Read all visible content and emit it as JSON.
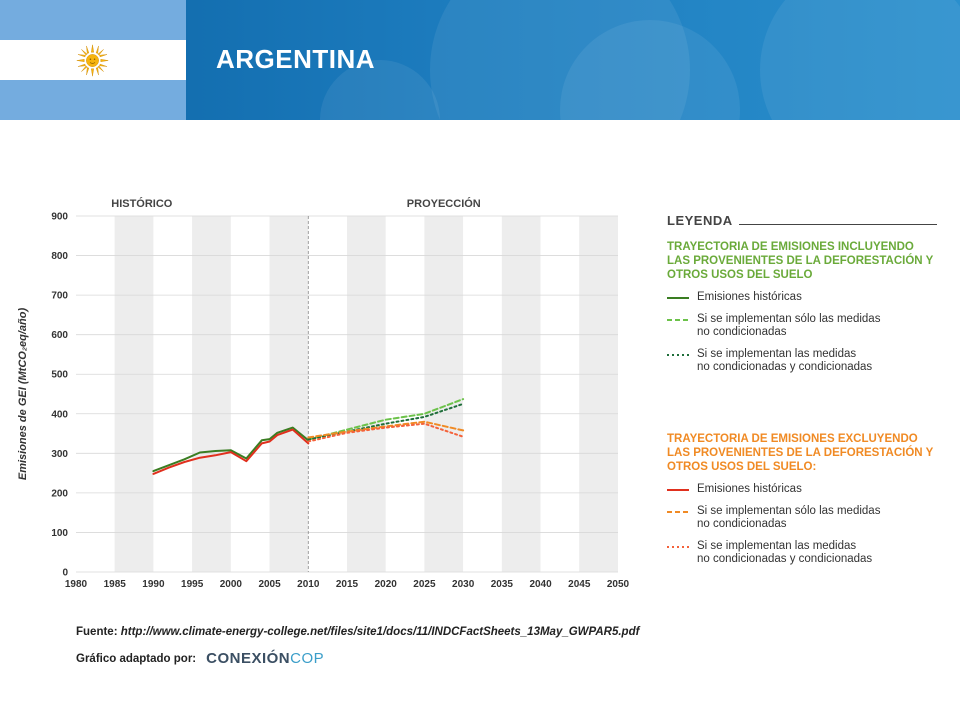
{
  "header": {
    "country": "ARGENTINA"
  },
  "chart_data": {
    "type": "line",
    "period_labels": {
      "historic": "HISTÓRICO",
      "projection": "PROYECCIÓN"
    },
    "ylabel": "Emisiones de GEI (MtCO₂eq/año)",
    "xlim": [
      1980,
      2050
    ],
    "ylim": [
      0,
      900
    ],
    "x_ticks": [
      1980,
      1985,
      1990,
      1995,
      2000,
      2005,
      2010,
      2015,
      2020,
      2025,
      2030,
      2035,
      2040,
      2045,
      2050
    ],
    "y_ticks": [
      0,
      100,
      200,
      300,
      400,
      500,
      600,
      700,
      800,
      900
    ],
    "divider_x": 2010,
    "grid": "alternating vertical bands",
    "colors": {
      "green_hist": "#3a7d22",
      "green_uncond": "#6cc24a",
      "green_cond": "#1f6e3a",
      "red_hist": "#e0301e",
      "orange_uncond": "#f08a24",
      "orange_cond": "#f4623a"
    },
    "series": [
      {
        "key": "green_hist",
        "style": "solid",
        "x": [
          1990,
          1992,
          1994,
          1996,
          1998,
          2000,
          2002,
          2004,
          2005,
          2006,
          2008,
          2010
        ],
        "y": [
          255,
          270,
          285,
          302,
          306,
          308,
          287,
          333,
          336,
          352,
          365,
          333
        ]
      },
      {
        "key": "green_uncond",
        "style": "dashed",
        "x": [
          2010,
          2015,
          2020,
          2025,
          2030
        ],
        "y": [
          335,
          360,
          385,
          400,
          437
        ]
      },
      {
        "key": "green_cond",
        "style": "dotted",
        "x": [
          2010,
          2015,
          2020,
          2025,
          2030
        ],
        "y": [
          335,
          355,
          375,
          392,
          425
        ]
      },
      {
        "key": "red_hist",
        "style": "solid",
        "x": [
          1990,
          1992,
          1994,
          1996,
          1998,
          2000,
          2002,
          2004,
          2005,
          2006,
          2008,
          2010
        ],
        "y": [
          248,
          264,
          278,
          289,
          295,
          303,
          280,
          325,
          330,
          346,
          360,
          325
        ]
      },
      {
        "key": "orange_uncond",
        "style": "dashed",
        "x": [
          2010,
          2015,
          2020,
          2025,
          2030
        ],
        "y": [
          340,
          355,
          368,
          380,
          358
        ]
      },
      {
        "key": "orange_cond",
        "style": "dotted",
        "x": [
          2010,
          2015,
          2020,
          2025,
          2030
        ],
        "y": [
          330,
          352,
          365,
          375,
          342
        ]
      }
    ]
  },
  "legend": {
    "title": "LEYENDA",
    "groups": [
      {
        "title": "TRAYECTORIA DE EMISIONES INCLUYENDO LAS PROVENIENTES DE LA DEFORESTACIÓN Y OTROS USOS DEL SUELO",
        "items": [
          {
            "label": "Emisiones históricas",
            "color": "#3a7d22",
            "style": "solid"
          },
          {
            "label": "Si se implementan sólo las medidas\nno condicionadas",
            "color": "#6cc24a",
            "style": "dashed"
          },
          {
            "label": "Si se implementan las medidas\nno condicionadas y condicionadas",
            "color": "#1f6e3a",
            "style": "dotted"
          }
        ]
      },
      {
        "title": "TRAYECTORIA DE EMISIONES EXCLUYENDO LAS PROVENIENTES DE LA DEFORESTACIÓN Y OTROS USOS DEL SUELO:",
        "items": [
          {
            "label": "Emisiones históricas",
            "color": "#e0301e",
            "style": "solid"
          },
          {
            "label": "Si se implementan sólo las medidas\nno condicionadas",
            "color": "#f08a24",
            "style": "dashed"
          },
          {
            "label": "Si se implementan las medidas\nno condicionadas y condicionadas",
            "color": "#f4623a",
            "style": "dotted"
          }
        ]
      }
    ]
  },
  "footer": {
    "source_label": "Fuente:",
    "source_url": "http://www.climate-energy-college.net/files/site1/docs/11/INDCFactSheets_13May_GWPAR5.pdf",
    "adapted_label": "Gráfico adaptado por:",
    "logo_part1": "CONEXIÓN",
    "logo_part2": "COP"
  }
}
